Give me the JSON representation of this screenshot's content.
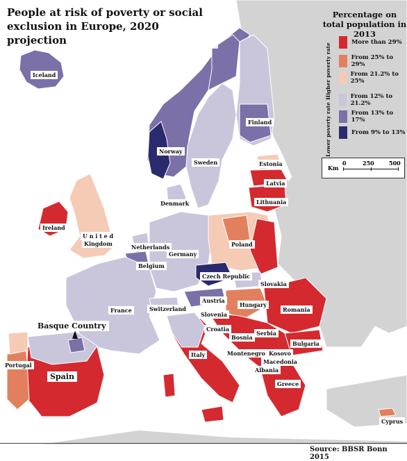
{
  "title": "People at risk of poverty or social exclusion in Europe, 2020 projection",
  "legend": {
    "title": "Percentage on total population in 2013",
    "higher_group": "Higher poverty rate",
    "lower_group": "Lower poverty rate",
    "items": [
      {
        "label": "More than 29%",
        "color": "#d42a2f"
      },
      {
        "label": "From 25% to 29%",
        "color": "#e2805e"
      },
      {
        "label": "From 21.2% to 25%",
        "color": "#f5cbb6"
      },
      {
        "label": "From 12% to 21.2%",
        "color": "#c9c6dc"
      },
      {
        "label": "From 13% to 17%",
        "color": "#7b70a8"
      },
      {
        "label": "From 9% to 13%",
        "color": "#2a2b6e"
      }
    ]
  },
  "scale": {
    "unit": "Km",
    "ticks": [
      "0",
      "250",
      "500"
    ]
  },
  "source": "Source: BBSR Bonn 2015",
  "colors": {
    "non_eu": "#d3d3d3",
    "border": "#ffffff"
  },
  "labels": {
    "iceland": "Iceland",
    "norway": "Norway",
    "sweden": "Sweden",
    "finland": "Finland",
    "estonia": "Estonia",
    "latvia": "Latvia",
    "lithuania": "Lithuania",
    "denmark": "Denmark",
    "ireland": "Ireland",
    "uk": "United Kingdom",
    "uk_line1": "U n i t e d",
    "uk_line2": "Kingdom",
    "netherlands": "Netherlands",
    "belgium": "Belgium",
    "germany": "Germany",
    "poland": "Poland",
    "czech": "Czech Republic",
    "slovakia": "Slovakia",
    "austria": "Austria",
    "hungary": "Hungary",
    "romania": "Romania",
    "france": "France",
    "switzerland": "Switzerland",
    "slovenia": "Slovenia",
    "croatia": "Croatia",
    "bosnia": "Bosnia",
    "serbia": "Serbia",
    "bulgaria": "Bulgaria",
    "montenegro": "Montenegro",
    "kosovo": "Kosovo",
    "macedonia": "Macedonia",
    "albania": "Albania",
    "greece": "Greece",
    "italy": "Italy",
    "basque": "Basque Country",
    "portugal": "Portugal",
    "spain": "Spain",
    "cyprus": "Cyprus"
  }
}
